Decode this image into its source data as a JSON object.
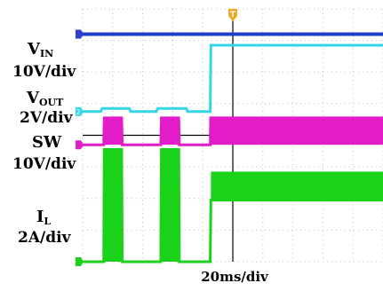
{
  "chart_data": {
    "type": "line",
    "title": "",
    "time_scale": "20ms/div",
    "grid": true,
    "grid_divisions_x": 10,
    "grid_divisions_y": 8,
    "trigger_marker": "T",
    "series": [
      {
        "id": "vin",
        "name": "VIN",
        "label_main": "V",
        "label_sub": "IN",
        "scale": "10V/div",
        "color": "#1f3fc8",
        "marker_color": "#2b3fd0",
        "marker_label": "",
        "points": [
          [
            0,
            7.2
          ],
          [
            4.25,
            7.2
          ],
          [
            4.26,
            7.2
          ],
          [
            10,
            7.2
          ]
        ]
      },
      {
        "id": "vout",
        "name": "VOUT",
        "label_main": "V",
        "label_sub": "OUT",
        "scale": "2V/div",
        "color": "#33d6e8",
        "marker_color": "#33d6e8",
        "marker_label": "2",
        "points": [
          [
            0,
            4.75
          ],
          [
            0.6,
            4.75
          ],
          [
            0.65,
            4.85
          ],
          [
            1.55,
            4.85
          ],
          [
            1.6,
            4.75
          ],
          [
            2.45,
            4.75
          ],
          [
            2.5,
            4.85
          ],
          [
            3.45,
            4.85
          ],
          [
            3.5,
            4.75
          ],
          [
            4.25,
            4.75
          ],
          [
            4.27,
            6.85
          ],
          [
            10,
            6.85
          ]
        ]
      },
      {
        "id": "sw",
        "name": "SW",
        "label_main": "SW",
        "label_sub": "",
        "scale": "10V/div",
        "color": "#e21cc8",
        "marker_color": "#e21cc8",
        "marker_label": "",
        "points": [
          [
            0,
            3.7
          ],
          [
            0.7,
            3.7
          ],
          [
            0.72,
            4.55
          ],
          [
            1.3,
            4.55
          ],
          [
            1.32,
            3.7
          ],
          [
            2.6,
            3.7
          ],
          [
            2.62,
            4.55
          ],
          [
            3.2,
            4.55
          ],
          [
            3.22,
            3.7
          ],
          [
            4.25,
            3.7
          ],
          [
            4.26,
            4.55
          ],
          [
            10,
            4.55
          ]
        ],
        "switching_band": [
          [
            4.26,
            10,
            3.7,
            4.55
          ]
        ]
      },
      {
        "id": "il",
        "name": "IL",
        "label_main": "I",
        "label_sub": "L",
        "scale": "2A/div",
        "color": "#1bd21b",
        "marker_color": "#1bd21b",
        "marker_label": "",
        "points": [
          [
            0,
            0.0
          ],
          [
            0.7,
            0.0
          ],
          [
            0.72,
            3.55
          ],
          [
            1.3,
            3.55
          ],
          [
            1.32,
            0.0
          ],
          [
            2.6,
            0.0
          ],
          [
            2.62,
            3.55
          ],
          [
            3.2,
            3.55
          ],
          [
            3.22,
            0.0
          ],
          [
            4.25,
            0.0
          ],
          [
            4.27,
            1.95
          ],
          [
            10,
            1.95
          ]
        ],
        "ripple_band": [
          [
            4.27,
            10,
            1.95,
            2.85
          ]
        ]
      }
    ]
  }
}
